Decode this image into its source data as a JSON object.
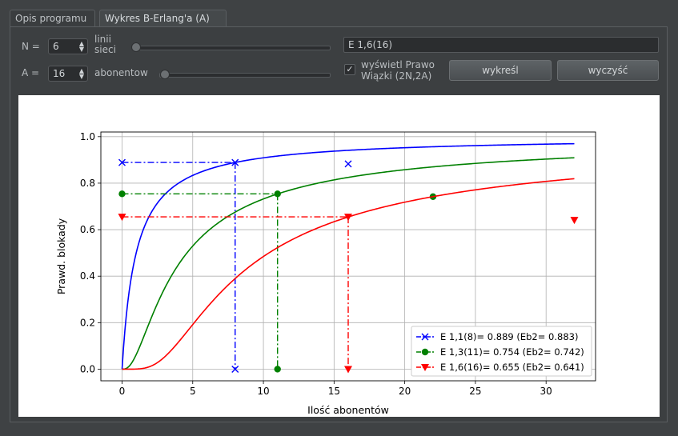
{
  "tabs": [
    {
      "label": "Opis programu"
    },
    {
      "label": "Wykres B-Erlang'a (A)"
    }
  ],
  "controls": {
    "n_label": "N =",
    "n_value": "6",
    "n_unit": "linii sieci",
    "a_label": "A =",
    "a_value": "16",
    "a_unit": "abonentow",
    "result_field": "E 1,6(16)",
    "checkbox_label": "wyświetl Prawo Wiązki (2N,2A)",
    "checkbox_checked": true,
    "plot_button": "wykreśl",
    "clear_button": "wyczyść"
  },
  "chart_data": {
    "type": "line",
    "xlabel": "Ilość abonentów",
    "ylabel": "Prawd. blokady",
    "xlim": [
      -1.5,
      33.5
    ],
    "ylim": [
      -0.05,
      1.02
    ],
    "xticks": [
      0,
      5,
      10,
      15,
      20,
      25,
      30
    ],
    "yticks": [
      0.0,
      0.2,
      0.4,
      0.6,
      0.8,
      1.0
    ],
    "x_max": 32,
    "grid": true,
    "legend_position": "bottom-right",
    "series": [
      {
        "name": "E 1,1(8)= 0.889 (Eb2= 0.883)",
        "color": "#0000ff",
        "marker": "x",
        "lines": 1,
        "A": 8,
        "E": 0.889,
        "Eb2_x": 16,
        "Eb2": 0.883
      },
      {
        "name": "E 1,3(11)= 0.754 (Eb2= 0.742)",
        "color": "#008000",
        "marker": "o",
        "lines": 3,
        "A": 11,
        "E": 0.754,
        "Eb2_x": 22,
        "Eb2": 0.742
      },
      {
        "name": "E 1,6(16)= 0.655 (Eb2= 0.641)",
        "color": "#ff0000",
        "marker": "v",
        "lines": 6,
        "A": 16,
        "E": 0.655,
        "Eb2_x": 32,
        "Eb2": 0.641
      }
    ]
  }
}
